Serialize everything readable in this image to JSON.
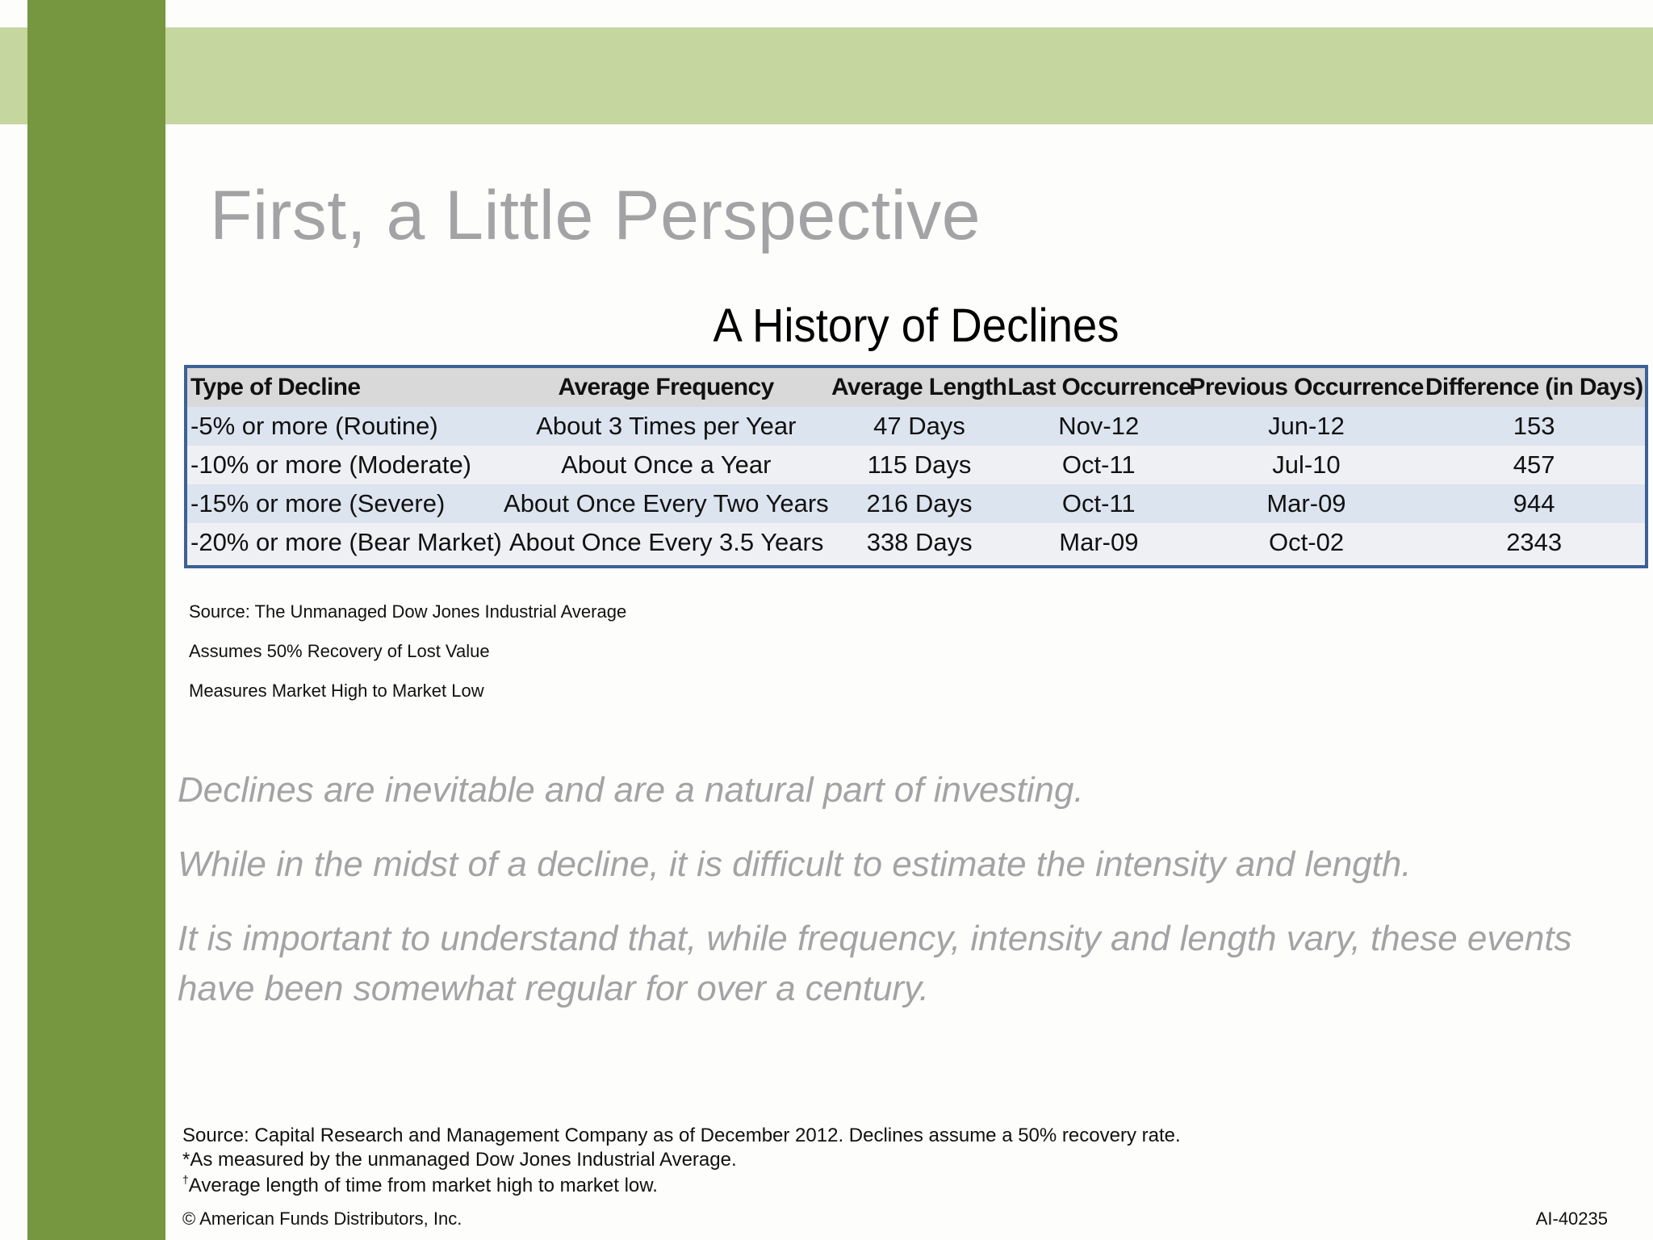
{
  "slide": {
    "title": "First, a Little Perspective"
  },
  "table": {
    "title": "A History of Declines",
    "columns": [
      "Type of Decline",
      "Average Frequency",
      "Average Length",
      "Last Occurrence",
      "Previous Occurrence",
      "Difference (in Days)"
    ],
    "rows": [
      [
        "-5% or more (Routine)",
        "About 3 Times per Year",
        "47 Days",
        "Nov-12",
        "Jun-12",
        "153"
      ],
      [
        "-10% or more (Moderate)",
        "About Once a Year",
        "115 Days",
        "Oct-11",
        "Jul-10",
        "457"
      ],
      [
        "-15% or more (Severe)",
        "About Once Every Two Years",
        "216 Days",
        "Oct-11",
        "Mar-09",
        "944"
      ],
      [
        "-20% or more (Bear Market)",
        "About Once Every 3.5 Years",
        "338 Days",
        "Mar-09",
        "Oct-02",
        "2343"
      ]
    ],
    "notes": [
      "Source: The Unmanaged Dow Jones Industrial Average",
      "Assumes 50% Recovery of Lost Value",
      "Measures Market High to Market Low"
    ]
  },
  "bullets": [
    "Declines are inevitable and are a natural part of investing.",
    "While in the midst of a decline, it is difficult to estimate the intensity and length.",
    "It is important to understand that, while frequency, intensity and length vary, these events have been somewhat regular for over a century."
  ],
  "footer": {
    "source": "Source: Capital Research and Management Company as of December 2012. Declines assume a 50% recovery rate.",
    "note1": "*As measured by the unmanaged Dow Jones Industrial Average.",
    "note2_mark": "†",
    "note2": "Average length of time from market high to market low.",
    "copyright": "© American Funds Distributors, Inc.",
    "code": "AI-40235"
  },
  "colors": {
    "top_band": "#c5d69f",
    "side_bar": "#779640",
    "table_border": "#3d6196",
    "title_gray": "#a3a3a5"
  }
}
